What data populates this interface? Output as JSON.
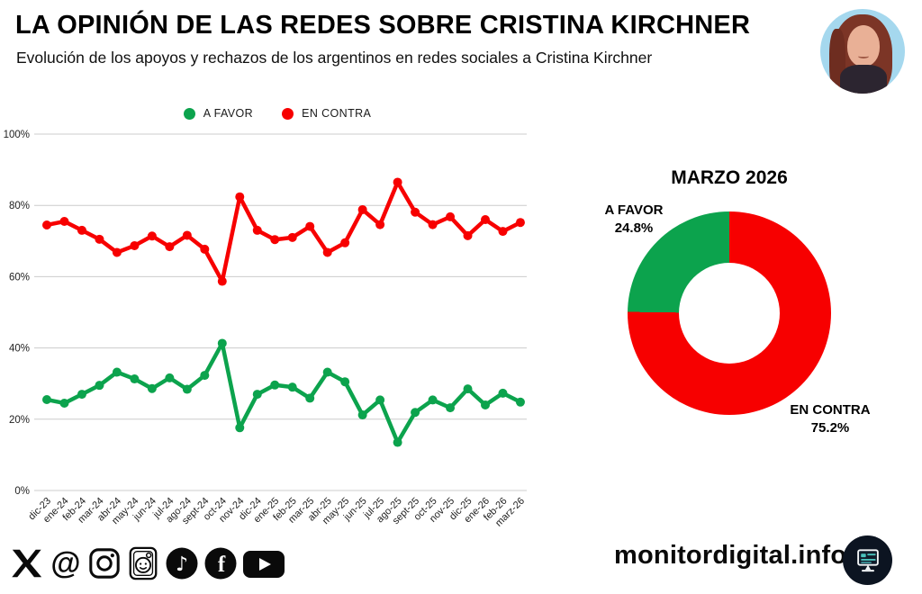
{
  "header": {
    "title": "LA OPINIÓN DE LAS REDES SOBRE CRISTINA KIRCHNER",
    "subtitle": "Evolución de los apoyos y rechazos de los argentinos en redes sociales a Cristina Kirchner"
  },
  "legend": {
    "items": [
      {
        "label": "A FAVOR",
        "color": "#0ca34d"
      },
      {
        "label": "EN CONTRA",
        "color": "#f70000"
      }
    ]
  },
  "chart_data": [
    {
      "type": "line",
      "categories": [
        "dic-23",
        "ene-24",
        "feb-24",
        "mar-24",
        "abr-24",
        "may-24",
        "jun-24",
        "jul-24",
        "ago-24",
        "sept-24",
        "oct-24",
        "nov-24",
        "dic-24",
        "ene-25",
        "feb-25",
        "mar-25",
        "abr-25",
        "may-25",
        "jun-25",
        "jul-25",
        "ago-25",
        "sept-25",
        "oct-25",
        "nov-25",
        "dic-25",
        "ene-26",
        "feb-26",
        "marz-26"
      ],
      "series": [
        {
          "name": "A FAVOR",
          "color": "#0ca34d",
          "values": [
            25.5,
            24.5,
            27.0,
            29.5,
            33.2,
            31.3,
            28.6,
            31.6,
            28.4,
            32.3,
            41.3,
            17.6,
            27.0,
            29.6,
            29.0,
            25.9,
            33.2,
            30.5,
            21.2,
            25.4,
            13.5,
            21.9,
            25.4,
            23.2,
            28.5,
            24.0,
            27.3,
            24.8
          ]
        },
        {
          "name": "EN CONTRA",
          "color": "#f70000",
          "values": [
            74.5,
            75.5,
            73.0,
            70.5,
            66.8,
            68.7,
            71.4,
            68.4,
            71.6,
            67.7,
            58.7,
            82.4,
            73.0,
            70.4,
            71.0,
            74.1,
            66.8,
            69.5,
            78.8,
            74.6,
            86.5,
            78.1,
            74.6,
            76.8,
            71.5,
            76.0,
            72.7,
            75.2
          ]
        }
      ],
      "ylim": [
        0,
        100
      ],
      "yticks": [
        0,
        20,
        40,
        60,
        80,
        100
      ],
      "ytick_suffix": "%",
      "grid": true,
      "legend_position": "top"
    },
    {
      "type": "pie",
      "donut": true,
      "title": "MARZO 2026",
      "slices": [
        {
          "label": "A FAVOR",
          "value": 24.8,
          "pct_label": "24.8%",
          "color": "#0ca34d"
        },
        {
          "label": "EN CONTRA",
          "value": 75.2,
          "pct_label": "75.2%",
          "color": "#f70000"
        }
      ]
    }
  ],
  "footer": {
    "site": "monitordigital.info",
    "icons": [
      {
        "name": "x-icon",
        "glyph": ""
      },
      {
        "name": "threads-icon",
        "glyph": "@"
      },
      {
        "name": "instagram-icon",
        "glyph": ""
      },
      {
        "name": "portrait-face-icon",
        "glyph": ""
      },
      {
        "name": "tiktok-icon",
        "glyph": "♪"
      },
      {
        "name": "facebook-icon",
        "glyph": "f"
      },
      {
        "name": "youtube-icon",
        "glyph": ""
      }
    ]
  },
  "colors": {
    "a_favor": "#0ca34d",
    "en_contra": "#f70000",
    "grid": "#cccccc",
    "text": "#222222",
    "badge_bg": "#0c1421",
    "avatar_bg": "#a5d8ee"
  }
}
